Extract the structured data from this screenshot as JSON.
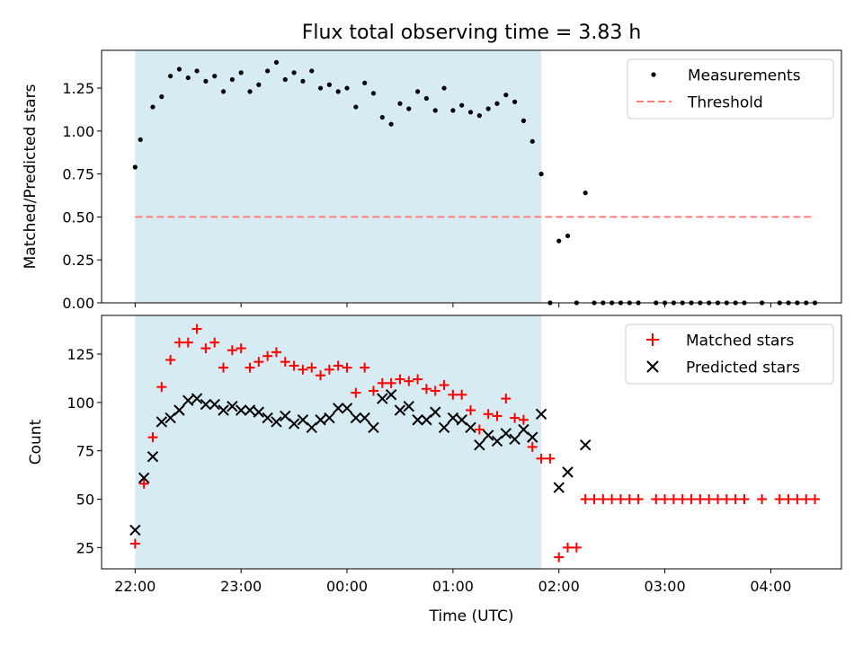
{
  "chart_data": [
    {
      "type": "scatter",
      "title": "Flux total observing time = 3.83 h",
      "xlabel": "",
      "ylabel": "Matched/Predicted stars",
      "xlim": [
        "21:41",
        "04:40"
      ],
      "ylim": [
        0,
        1.47
      ],
      "yticks": [
        "0.00",
        "0.25",
        "0.50",
        "0.75",
        "1.00",
        "1.25"
      ],
      "ytick_values": [
        0,
        0.25,
        0.5,
        0.75,
        1.0,
        1.25
      ],
      "xticks": [
        "22:00",
        "23:00",
        "00:00",
        "01:00",
        "02:00",
        "03:00",
        "04:00"
      ],
      "shaded_span": {
        "start": "22:00",
        "end": "01:50",
        "color": "#add8e6"
      },
      "legend": {
        "position": "top-right",
        "entries": [
          "Measurements",
          "Threshold"
        ]
      },
      "series": [
        {
          "name": "Measurements",
          "marker": "dot",
          "color": "#000000",
          "x": [
            "22:00",
            "22:03",
            "22:10",
            "22:15",
            "22:20",
            "22:25",
            "22:30",
            "22:35",
            "22:40",
            "22:45",
            "22:50",
            "22:55",
            "23:00",
            "23:05",
            "23:10",
            "23:15",
            "23:20",
            "23:25",
            "23:30",
            "23:35",
            "23:40",
            "23:45",
            "23:50",
            "23:55",
            "00:00",
            "00:05",
            "00:10",
            "00:15",
            "00:20",
            "00:25",
            "00:30",
            "00:35",
            "00:40",
            "00:45",
            "00:50",
            "00:55",
            "01:00",
            "01:05",
            "01:10",
            "01:15",
            "01:20",
            "01:25",
            "01:30",
            "01:35",
            "01:40",
            "01:45",
            "01:50",
            "01:55",
            "02:00",
            "02:05",
            "02:10",
            "02:15",
            "02:20",
            "02:25",
            "02:30",
            "02:35",
            "02:40",
            "02:45",
            "02:55",
            "03:00",
            "03:05",
            "03:10",
            "03:15",
            "03:20",
            "03:25",
            "03:30",
            "03:35",
            "03:40",
            "03:45",
            "03:55",
            "04:05",
            "04:10",
            "04:15",
            "04:20",
            "04:25"
          ],
          "y": [
            0.79,
            0.95,
            1.14,
            1.2,
            1.32,
            1.36,
            1.31,
            1.35,
            1.29,
            1.32,
            1.23,
            1.3,
            1.34,
            1.23,
            1.27,
            1.35,
            1.4,
            1.3,
            1.34,
            1.29,
            1.35,
            1.25,
            1.27,
            1.23,
            1.25,
            1.14,
            1.28,
            1.22,
            1.08,
            1.04,
            1.16,
            1.13,
            1.23,
            1.19,
            1.12,
            1.25,
            1.12,
            1.15,
            1.11,
            1.09,
            1.13,
            1.16,
            1.21,
            1.17,
            1.06,
            0.94,
            0.75,
            0.0,
            0.36,
            0.39,
            0.0,
            0.64,
            0.0,
            0.0,
            0.0,
            0.0,
            0.0,
            0.0,
            0.0,
            0.0,
            0.0,
            0.0,
            0.0,
            0.0,
            0.0,
            0.0,
            0.0,
            0.0,
            0.0,
            0.0,
            0.0,
            0.0,
            0.0,
            0.0,
            0.0
          ]
        },
        {
          "name": "Threshold",
          "style": "dashed",
          "color": "#ff7f7f",
          "x": [
            "22:00",
            "04:25"
          ],
          "y": [
            0.5,
            0.5
          ]
        }
      ]
    },
    {
      "type": "scatter",
      "title": "",
      "xlabel": "Time (UTC)",
      "ylabel": "Count",
      "xlim": [
        "21:41",
        "04:40"
      ],
      "ylim": [
        14,
        145
      ],
      "yticks": [
        "25",
        "50",
        "75",
        "100",
        "125"
      ],
      "ytick_values": [
        25,
        50,
        75,
        100,
        125
      ],
      "xticks": [
        "22:00",
        "23:00",
        "00:00",
        "01:00",
        "02:00",
        "03:00",
        "04:00"
      ],
      "shaded_span": {
        "start": "22:00",
        "end": "01:50",
        "color": "#add8e6"
      },
      "legend": {
        "position": "top-right",
        "entries": [
          "Matched stars",
          "Predicted stars"
        ]
      },
      "series": [
        {
          "name": "Matched stars",
          "marker": "plus",
          "color": "#ff0000",
          "x": [
            "22:00",
            "22:05",
            "22:10",
            "22:15",
            "22:20",
            "22:25",
            "22:30",
            "22:35",
            "22:40",
            "22:45",
            "22:50",
            "22:55",
            "23:00",
            "23:05",
            "23:10",
            "23:15",
            "23:20",
            "23:25",
            "23:30",
            "23:35",
            "23:40",
            "23:45",
            "23:50",
            "23:55",
            "00:00",
            "00:05",
            "00:10",
            "00:15",
            "00:20",
            "00:25",
            "00:30",
            "00:35",
            "00:40",
            "00:45",
            "00:50",
            "00:55",
            "01:00",
            "01:05",
            "01:10",
            "01:15",
            "01:20",
            "01:25",
            "01:30",
            "01:35",
            "01:40",
            "01:45",
            "01:50",
            "01:55",
            "02:00",
            "02:05",
            "02:10",
            "02:15",
            "02:20",
            "02:25",
            "02:30",
            "02:35",
            "02:40",
            "02:45",
            "02:55",
            "03:00",
            "03:05",
            "03:10",
            "03:15",
            "03:20",
            "03:25",
            "03:30",
            "03:35",
            "03:40",
            "03:45",
            "03:55",
            "04:05",
            "04:10",
            "04:15",
            "04:20",
            "04:25"
          ],
          "y": [
            27,
            58,
            82,
            108,
            122,
            131,
            131,
            138,
            128,
            131,
            118,
            127,
            128,
            118,
            121,
            124,
            126,
            121,
            119,
            117,
            118,
            114,
            117,
            119,
            118,
            105,
            118,
            106,
            110,
            110,
            112,
            111,
            112,
            107,
            106,
            109,
            104,
            104,
            96,
            86,
            94,
            93,
            102,
            92,
            91,
            77,
            71,
            71,
            20,
            25,
            25,
            50,
            50,
            50,
            50,
            50,
            50,
            50,
            50,
            50,
            50,
            50,
            50,
            50,
            50,
            50,
            50,
            50,
            50,
            50,
            50,
            50,
            50,
            50,
            50
          ]
        },
        {
          "name": "Predicted stars",
          "marker": "x",
          "color": "#000000",
          "x": [
            "22:00",
            "22:05",
            "22:10",
            "22:15",
            "22:20",
            "22:25",
            "22:30",
            "22:35",
            "22:40",
            "22:45",
            "22:50",
            "22:55",
            "23:00",
            "23:05",
            "23:10",
            "23:15",
            "23:20",
            "23:25",
            "23:30",
            "23:35",
            "23:40",
            "23:45",
            "23:50",
            "23:55",
            "00:00",
            "00:05",
            "00:10",
            "00:15",
            "00:20",
            "00:25",
            "00:30",
            "00:35",
            "00:40",
            "00:45",
            "00:50",
            "00:55",
            "01:00",
            "01:05",
            "01:10",
            "01:15",
            "01:20",
            "01:25",
            "01:30",
            "01:35",
            "01:40",
            "01:45",
            "01:50",
            "02:00",
            "02:05",
            "02:15"
          ],
          "y": [
            34,
            61,
            72,
            90,
            92,
            96,
            101,
            102,
            99,
            99,
            96,
            98,
            96,
            96,
            95,
            92,
            90,
            93,
            89,
            91,
            87,
            91,
            92,
            97,
            97,
            92,
            92,
            87,
            102,
            104,
            96,
            98,
            91,
            91,
            95,
            87,
            92,
            91,
            87,
            78,
            83,
            80,
            84,
            81,
            86,
            82,
            94,
            56,
            64,
            78
          ]
        }
      ]
    }
  ]
}
